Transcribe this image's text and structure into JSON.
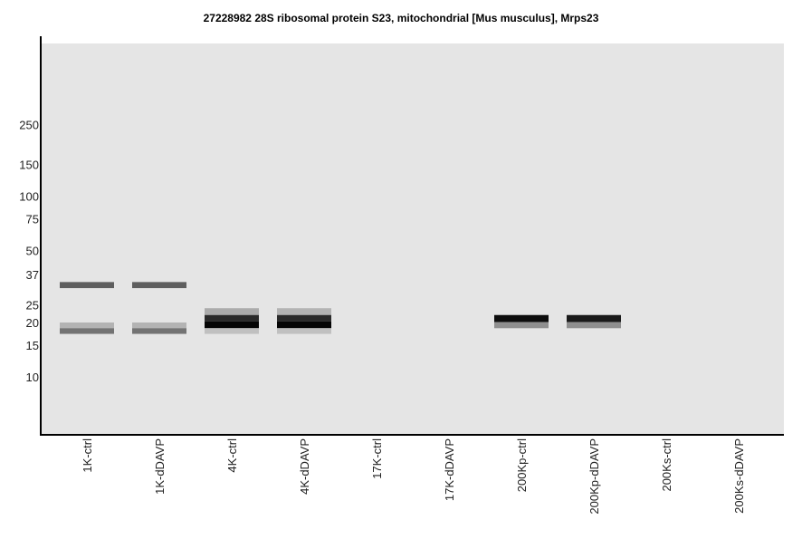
{
  "chart_data": {
    "type": "heatmap",
    "title": "27228982 28S ribosomal protein S23, mitochondrial [Mus musculus], Mrps23",
    "y_scale": "log",
    "y_ticks": [
      250,
      150,
      100,
      75,
      50,
      37,
      25,
      20,
      15,
      10
    ],
    "lanes": [
      "1K-ctrl",
      "1K-dDAVP",
      "4K-ctrl",
      "4K-dDAVP",
      "17K-ctrl",
      "17K-dDAVP",
      "200Kp-ctrl",
      "200Kp-dDAVP",
      "200Ks-ctrl",
      "200Ks-dDAVP"
    ],
    "bands": [
      {
        "lane": "1K-ctrl",
        "mw_top": 33.5,
        "mw_bottom": 31.0,
        "color": "#5e5e5e"
      },
      {
        "lane": "1K-ctrl",
        "mw_top": 20.0,
        "mw_bottom": 18.6,
        "color": "#b3b3b3"
      },
      {
        "lane": "1K-ctrl",
        "mw_top": 18.6,
        "mw_bottom": 17.3,
        "color": "#737373"
      },
      {
        "lane": "1K-dDAVP",
        "mw_top": 33.5,
        "mw_bottom": 31.0,
        "color": "#5e5e5e"
      },
      {
        "lane": "1K-dDAVP",
        "mw_top": 20.0,
        "mw_bottom": 18.6,
        "color": "#b3b3b3"
      },
      {
        "lane": "1K-dDAVP",
        "mw_top": 18.6,
        "mw_bottom": 17.3,
        "color": "#737373"
      },
      {
        "lane": "4K-ctrl",
        "mw_top": 24.0,
        "mw_bottom": 22.0,
        "color": "#ababab"
      },
      {
        "lane": "4K-ctrl",
        "mw_top": 22.0,
        "mw_bottom": 20.3,
        "color": "#2a2a2a"
      },
      {
        "lane": "4K-ctrl",
        "mw_top": 20.3,
        "mw_bottom": 18.6,
        "color": "#050505"
      },
      {
        "lane": "4K-ctrl",
        "mw_top": 18.6,
        "mw_bottom": 17.3,
        "color": "#c0c0c0"
      },
      {
        "lane": "4K-dDAVP",
        "mw_top": 24.0,
        "mw_bottom": 22.0,
        "color": "#b3b3b3"
      },
      {
        "lane": "4K-dDAVP",
        "mw_top": 22.0,
        "mw_bottom": 20.3,
        "color": "#2a2a2a"
      },
      {
        "lane": "4K-dDAVP",
        "mw_top": 20.3,
        "mw_bottom": 18.6,
        "color": "#050505"
      },
      {
        "lane": "4K-dDAVP",
        "mw_top": 18.6,
        "mw_bottom": 17.3,
        "color": "#c0c0c0"
      },
      {
        "lane": "200Kp-ctrl",
        "mw_top": 22.0,
        "mw_bottom": 20.1,
        "color": "#0d0d0d"
      },
      {
        "lane": "200Kp-ctrl",
        "mw_top": 20.1,
        "mw_bottom": 18.6,
        "color": "#8f8f8f"
      },
      {
        "lane": "200Kp-dDAVP",
        "mw_top": 22.0,
        "mw_bottom": 20.1,
        "color": "#1a1a1a"
      },
      {
        "lane": "200Kp-dDAVP",
        "mw_top": 20.1,
        "mw_bottom": 18.6,
        "color": "#8f8f8f"
      }
    ],
    "colors": {
      "plot_bg": "#e5e5e5",
      "axis": "#000000"
    },
    "grid": false,
    "legend": "none"
  }
}
